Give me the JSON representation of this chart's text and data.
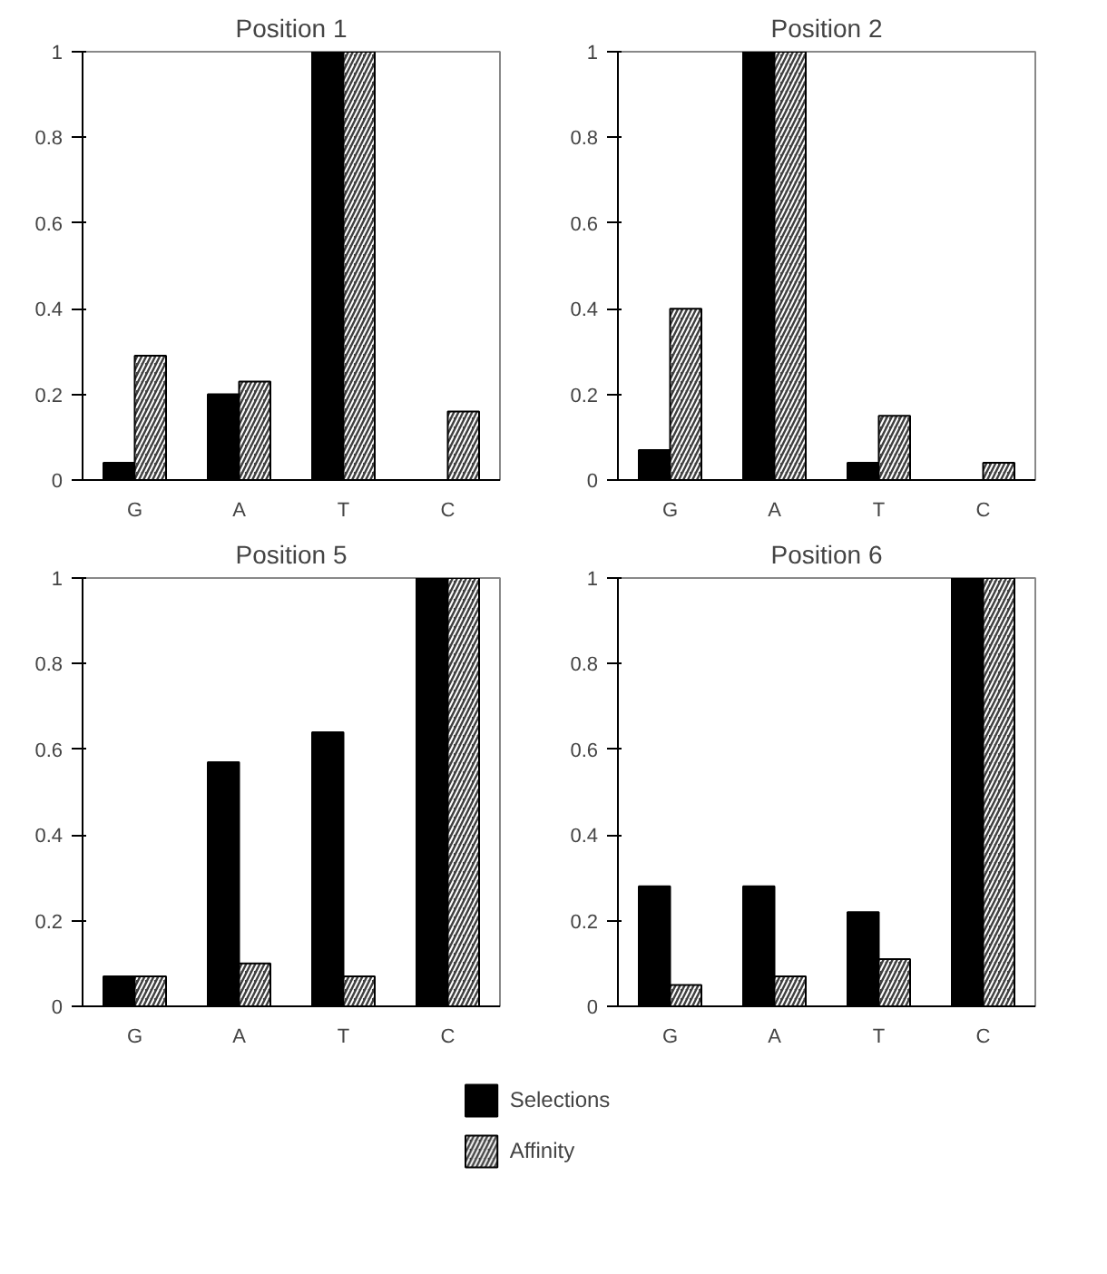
{
  "chart_data": [
    {
      "type": "bar",
      "title": "Position 1",
      "categories": [
        "G",
        "A",
        "T",
        "C"
      ],
      "ylim": [
        0,
        1
      ],
      "yticks": [
        0,
        0.2,
        0.4,
        0.6,
        0.8,
        1
      ],
      "grid": false,
      "legend": "bottom",
      "series": [
        {
          "name": "Selections",
          "color": "#000000",
          "values": [
            0.04,
            0.2,
            1,
            0
          ]
        },
        {
          "name": "Affinity",
          "color": "#404040",
          "values": [
            0.29,
            0.23,
            1,
            0.16
          ]
        }
      ]
    },
    {
      "type": "bar",
      "title": "Position 2",
      "categories": [
        "G",
        "A",
        "T",
        "C"
      ],
      "ylim": [
        0,
        1
      ],
      "yticks": [
        0,
        0.2,
        0.4,
        0.6,
        0.8,
        1
      ],
      "grid": false,
      "series": [
        {
          "color": "#000000",
          "values": [
            0.07,
            1,
            0.04,
            0
          ]
        },
        {
          "color": "#404040",
          "values": [
            0.4,
            1,
            0.15,
            0.04
          ]
        }
      ]
    },
    {
      "type": "bar",
      "title": "Position 5",
      "categories": [
        "G",
        "A",
        "T",
        "C"
      ],
      "ylim": [
        0,
        1
      ],
      "yticks": [
        0,
        0.2,
        0.4,
        0.6,
        0.8,
        1
      ],
      "grid": false,
      "series": [
        {
          "color": "#000000",
          "values": [
            0.07,
            0.57,
            0.64,
            1
          ]
        },
        {
          "color": "#404040",
          "values": [
            0.07,
            0.1,
            0.07,
            1
          ]
        }
      ]
    },
    {
      "type": "bar",
      "title": "Position 6",
      "categories": [
        "G",
        "A",
        "T",
        "C"
      ],
      "ylim": [
        0,
        1
      ],
      "yticks": [
        0,
        0.2,
        0.4,
        0.6,
        0.8,
        1
      ],
      "grid": false,
      "series": [
        {
          "color": "#000000",
          "values": [
            0.28,
            0.28,
            0.22,
            1
          ]
        },
        {
          "color": "#404040",
          "values": [
            0.05,
            0.07,
            0.11,
            1
          ]
        }
      ]
    }
  ]
}
